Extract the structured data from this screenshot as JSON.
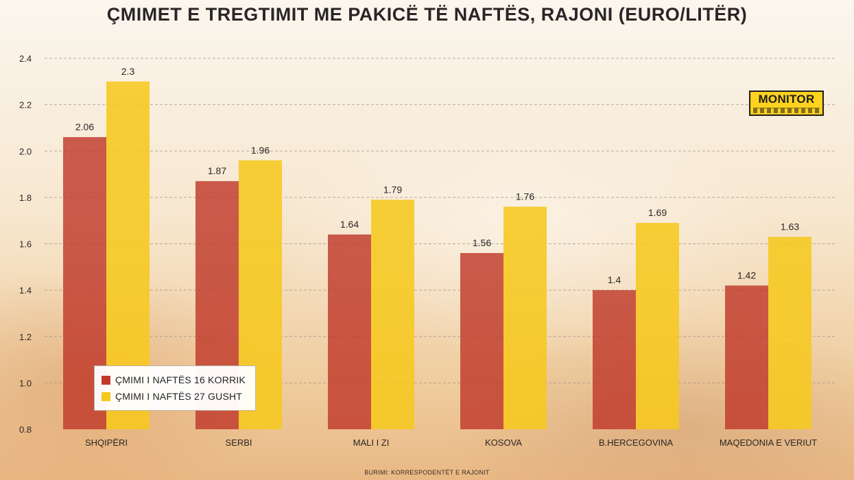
{
  "title": "ÇMIMET E TREGTIMIT ME PAKICË TË NAFTËS, RAJONI (EURO/LITËR)",
  "logo": {
    "text": "MONITOR"
  },
  "source": "BURIMI: KORRESPODENTËT E RAJONIT",
  "colors": {
    "series1": "#c0392b",
    "series2": "#f6c81f"
  },
  "chart_data": {
    "type": "bar",
    "title": "ÇMIMET E TREGTIMIT ME PAKICË TË NAFTËS, RAJONI (EURO/LITËR)",
    "categories": [
      "SHQIPËRI",
      "SERBI",
      "MALI I ZI",
      "KOSOVA",
      "B.HERCEGOVINA",
      "MAQEDONIA E VERIUT"
    ],
    "series": [
      {
        "name": "ÇMIMI I NAFTËS 16 KORRIK",
        "values": [
          2.06,
          1.87,
          1.64,
          1.56,
          1.4,
          1.42
        ]
      },
      {
        "name": "ÇMIMI I NAFTËS 27 GUSHT",
        "values": [
          2.3,
          1.96,
          1.79,
          1.76,
          1.69,
          1.63
        ]
      }
    ],
    "value_labels": [
      [
        "2.06",
        "1.87",
        "1.64",
        "1.56",
        "1.4",
        "1.42"
      ],
      [
        "2.3",
        "1.96",
        "1.79",
        "1.76",
        "1.69",
        "1.63"
      ]
    ],
    "yticks": [
      "0.8",
      "1.0",
      "1.2",
      "1.4",
      "1.6",
      "1.8",
      "2.0",
      "2.2",
      "2.4"
    ],
    "ylim": [
      0.8,
      2.4
    ],
    "xlabel": "",
    "ylabel": "",
    "grid": true,
    "legend_position": "bottom-left"
  }
}
